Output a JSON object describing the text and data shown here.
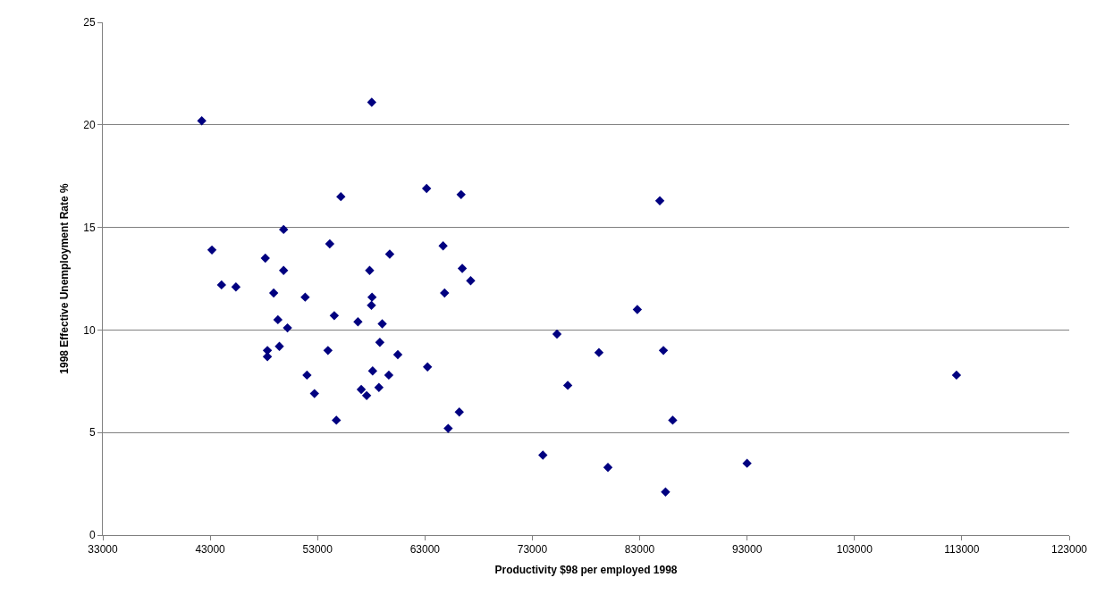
{
  "chart_data": {
    "type": "scatter",
    "xlabel": "Productivity $98 per employed 1998",
    "ylabel": "1998 Effective Unemployment Rate %",
    "x": [
      42213,
      58044,
      55168,
      63153,
      66364,
      49835,
      43162,
      54135,
      64689,
      48132,
      59719,
      49835,
      57848,
      66475,
      67257,
      44056,
      45396,
      48914,
      51846,
      58072,
      58016,
      64828,
      54554,
      49305,
      50198,
      56760,
      59021,
      58798,
      48328,
      48328,
      49444,
      53968,
      60473,
      63237,
      58128,
      59635,
      52013,
      52711,
      57067,
      57570,
      58714,
      54749,
      66197,
      65164,
      84871,
      82777,
      75295,
      85206,
      79203,
      76300,
      86072,
      73982,
      80041,
      92996,
      85402,
      112500
    ],
    "series": [
      {
        "color": "#000080",
        "values": [
          20.2,
          21.1,
          16.5,
          16.9,
          16.6,
          14.9,
          13.9,
          14.2,
          14.1,
          13.5,
          13.7,
          12.9,
          12.9,
          13.0,
          12.4,
          12.2,
          12.1,
          11.8,
          11.6,
          11.6,
          11.2,
          11.8,
          10.7,
          10.5,
          10.1,
          10.4,
          10.3,
          9.4,
          9.0,
          8.7,
          9.2,
          9.0,
          8.8,
          8.2,
          8.0,
          7.8,
          7.8,
          6.9,
          7.1,
          6.8,
          7.2,
          5.6,
          6.0,
          5.2,
          16.3,
          11.0,
          9.8,
          9.0,
          8.9,
          7.3,
          5.6,
          3.9,
          3.3,
          3.5,
          2.1,
          7.8
        ]
      }
    ],
    "xlim": [
      33000,
      123000
    ],
    "xticks": [
      33000,
      43000,
      53000,
      63000,
      73000,
      83000,
      93000,
      103000,
      113000,
      123000
    ],
    "ylim": [
      0,
      25
    ],
    "yticks": [
      0,
      5,
      10,
      15,
      20,
      25
    ],
    "grid": "y",
    "marker": "diamond"
  }
}
